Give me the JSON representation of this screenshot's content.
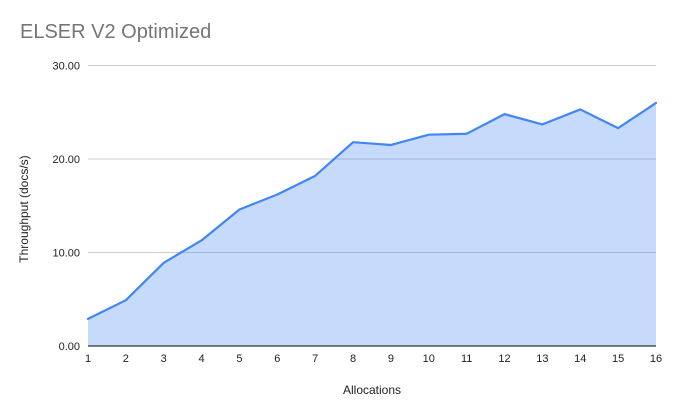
{
  "chart_data": {
    "type": "area",
    "title": "ELSER V2 Optimized",
    "xlabel": "Allocations",
    "ylabel": "Throughput (docs/s)",
    "x": [
      1,
      2,
      3,
      4,
      5,
      6,
      7,
      8,
      9,
      10,
      11,
      12,
      13,
      14,
      15,
      16
    ],
    "series": [
      {
        "name": "Throughput (docs/s)",
        "values": [
          2.9,
          4.9,
          8.9,
          11.3,
          14.6,
          16.2,
          18.2,
          21.8,
          21.5,
          22.6,
          22.7,
          24.8,
          23.7,
          25.3,
          23.3,
          26.0
        ]
      }
    ],
    "ylim": [
      0,
      30
    ],
    "yticks": [
      0,
      10,
      20,
      30
    ],
    "ytick_labels": [
      "0.00",
      "10.00",
      "20.00",
      "30.00"
    ],
    "grid": true,
    "legend": "none"
  },
  "colors": {
    "line": "#4285f4",
    "area_opacity": 0.3,
    "gridline": "#cccccc",
    "axis_line": "#333333",
    "tick_label": "#222222",
    "axis_title": "#222222",
    "chart_title": "#757575",
    "background": "#ffffff"
  }
}
